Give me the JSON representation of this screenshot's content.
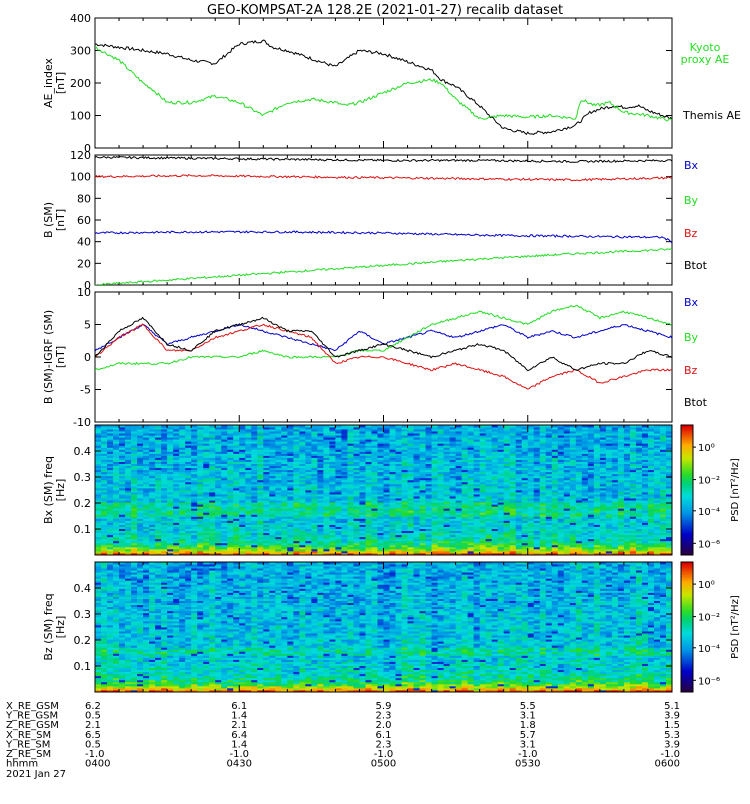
{
  "title": "GEO-KOMPSAT-2A 128.2E (2021-01-27) recalib dataset",
  "colors": {
    "black": "#000000",
    "green": "#22dd22",
    "red": "#dd1111",
    "blue": "#0000cc"
  },
  "colorbar": {
    "label": "PSD [nT²/Hz]",
    "ticks": [
      "10⁰",
      "10⁻²",
      "10⁻⁴",
      "10⁻⁶"
    ],
    "colormap": "rainbow"
  },
  "chart_data": [
    {
      "id": "ae",
      "type": "line",
      "ylabel": "AE_index [nT]",
      "ylim": [
        0,
        400
      ],
      "yticks": [
        0,
        100,
        200,
        300,
        400
      ],
      "xlim": [
        0,
        120
      ],
      "series": [
        {
          "name": "Themis AE",
          "color": "black",
          "x": [
            0,
            5,
            10,
            15,
            20,
            25,
            30,
            35,
            37,
            40,
            45,
            50,
            55,
            60,
            65,
            70,
            72,
            75,
            80,
            82,
            85,
            90,
            95,
            100,
            103,
            105,
            108,
            110,
            113,
            115,
            118,
            120
          ],
          "y": [
            320,
            310,
            300,
            290,
            270,
            260,
            320,
            330,
            310,
            300,
            275,
            250,
            300,
            290,
            265,
            240,
            210,
            190,
            130,
            100,
            60,
            45,
            50,
            70,
            110,
            120,
            130,
            125,
            130,
            115,
            100,
            90
          ]
        },
        {
          "name": "Kyoto proxy AE",
          "color": "green",
          "x": [
            0,
            5,
            10,
            12,
            15,
            20,
            25,
            30,
            35,
            40,
            45,
            50,
            52,
            55,
            60,
            65,
            70,
            72,
            75,
            80,
            85,
            90,
            95,
            100,
            101,
            104,
            107,
            110,
            115,
            118,
            120
          ],
          "y": [
            310,
            270,
            200,
            180,
            140,
            140,
            160,
            140,
            100,
            140,
            150,
            140,
            130,
            140,
            170,
            200,
            210,
            200,
            150,
            90,
            100,
            95,
            100,
            90,
            150,
            130,
            140,
            110,
            100,
            90,
            85
          ]
        }
      ],
      "legend_position": "right"
    },
    {
      "id": "b",
      "type": "line",
      "ylabel": "B (SM) [nT]",
      "ylim": [
        0,
        120
      ],
      "yticks": [
        0,
        20,
        40,
        60,
        80,
        100,
        120
      ],
      "xlim": [
        0,
        120
      ],
      "series": [
        {
          "name": "Btot",
          "color": "black",
          "x": [
            0,
            20,
            40,
            60,
            80,
            100,
            120
          ],
          "y": [
            118,
            117,
            116,
            115,
            115,
            114,
            115
          ]
        },
        {
          "name": "Bz",
          "color": "red",
          "x": [
            0,
            20,
            40,
            60,
            80,
            100,
            120
          ],
          "y": [
            100,
            101,
            100,
            99,
            98,
            97,
            99
          ]
        },
        {
          "name": "Bx",
          "color": "blue",
          "x": [
            0,
            20,
            40,
            60,
            80,
            100,
            118,
            120
          ],
          "y": [
            48,
            49,
            49,
            48,
            46,
            45,
            44,
            40
          ]
        },
        {
          "name": "By",
          "color": "green",
          "x": [
            0,
            20,
            40,
            60,
            80,
            100,
            120
          ],
          "y": [
            0,
            6,
            12,
            18,
            24,
            29,
            33
          ]
        }
      ],
      "legend_position": "right"
    },
    {
      "id": "db",
      "type": "line",
      "ylabel": "B (SM)-IGRF (SM) [nT]",
      "ylim": [
        -10,
        10
      ],
      "yticks": [
        -10,
        -5,
        0,
        5,
        10
      ],
      "xlim": [
        0,
        120
      ],
      "series": [
        {
          "name": "Bx",
          "color": "blue",
          "x": [
            0,
            5,
            10,
            15,
            20,
            25,
            30,
            35,
            40,
            45,
            50,
            55,
            60,
            65,
            70,
            75,
            80,
            85,
            90,
            95,
            100,
            105,
            110,
            115,
            120
          ],
          "y": [
            1,
            3,
            5,
            2,
            3,
            4,
            5,
            4,
            3,
            2,
            1,
            4,
            2,
            3,
            4,
            3,
            4,
            5,
            3,
            4,
            3,
            4,
            5,
            4,
            3
          ]
        },
        {
          "name": "By",
          "color": "green",
          "x": [
            0,
            5,
            10,
            15,
            20,
            25,
            30,
            35,
            40,
            45,
            50,
            55,
            60,
            65,
            70,
            75,
            80,
            85,
            90,
            95,
            100,
            105,
            110,
            115,
            120
          ],
          "y": [
            -2,
            -1,
            -1,
            -1,
            0,
            0,
            0,
            1,
            0,
            0,
            0,
            1,
            1,
            3,
            5,
            6,
            7,
            6,
            5,
            7,
            8,
            6,
            7,
            6,
            5
          ]
        },
        {
          "name": "Bz",
          "color": "red",
          "x": [
            0,
            5,
            10,
            15,
            20,
            25,
            30,
            35,
            40,
            45,
            50,
            55,
            60,
            65,
            70,
            75,
            80,
            85,
            90,
            95,
            100,
            105,
            110,
            115,
            120
          ],
          "y": [
            0,
            3,
            5,
            1,
            1,
            3,
            4,
            5,
            4,
            3,
            -1,
            0,
            0,
            -1,
            -2,
            -1,
            -2,
            -3,
            -5,
            -3,
            -2,
            -4,
            -3,
            -2,
            -2
          ]
        },
        {
          "name": "Btot",
          "color": "black",
          "x": [
            0,
            5,
            10,
            15,
            20,
            25,
            30,
            35,
            40,
            45,
            50,
            55,
            60,
            65,
            70,
            75,
            80,
            85,
            90,
            95,
            100,
            105,
            110,
            115,
            120
          ],
          "y": [
            0,
            4,
            6,
            2,
            1,
            4,
            5,
            6,
            4,
            4,
            0,
            1,
            2,
            1,
            0,
            1,
            2,
            1,
            -2,
            0,
            -2,
            -1,
            -1,
            1,
            0
          ]
        }
      ],
      "legend_position": "right"
    },
    {
      "id": "bx_spec",
      "type": "heatmap",
      "ylabel": "Bx (SM) freq [Hz]",
      "ylim": [
        0,
        0.5
      ],
      "yticks": [
        0.1,
        0.2,
        0.3,
        0.4
      ]
    },
    {
      "id": "bz_spec",
      "type": "heatmap",
      "ylabel": "Bz (SM) freq [Hz]",
      "ylim": [
        0,
        0.5
      ],
      "yticks": [
        0.1,
        0.2,
        0.3,
        0.4
      ]
    }
  ],
  "ephemeris": {
    "labels": [
      "X_RE_GSM",
      "Y_RE_GSM",
      "Z_RE_GSM",
      "X_RE_SM",
      "Y_RE_SM",
      "Z_RE_SM",
      "hhmm"
    ],
    "date": "2021 Jan 27",
    "columns": [
      [
        "6.2",
        "0.5",
        "2.1",
        "6.5",
        "0.5",
        "-1.0",
        "0400"
      ],
      [
        "6.1",
        "1.4",
        "2.1",
        "6.4",
        "1.4",
        "-1.0",
        "0430"
      ],
      [
        "5.9",
        "2.3",
        "2.0",
        "6.1",
        "2.3",
        "-1.0",
        "0500"
      ],
      [
        "5.5",
        "3.1",
        "1.8",
        "5.7",
        "3.1",
        "-1.0",
        "0530"
      ],
      [
        "5.1",
        "3.9",
        "1.5",
        "5.3",
        "3.9",
        "-1.0",
        "0600"
      ]
    ]
  }
}
